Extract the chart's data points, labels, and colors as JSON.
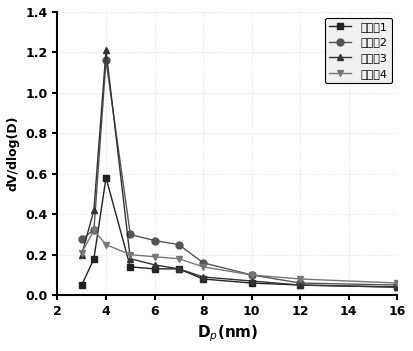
{
  "series": [
    {
      "label": "实施例1",
      "marker": "s",
      "color": "#222222",
      "x": [
        3.0,
        3.5,
        4.0,
        5.0,
        6.0,
        7.0,
        8.0,
        10.0,
        12.0,
        16.0
      ],
      "y": [
        0.05,
        0.18,
        0.58,
        0.14,
        0.13,
        0.13,
        0.08,
        0.06,
        0.05,
        0.04
      ]
    },
    {
      "label": "实施例2",
      "marker": "o",
      "color": "#555555",
      "x": [
        3.0,
        3.5,
        4.0,
        5.0,
        6.0,
        7.0,
        8.0,
        10.0,
        12.0,
        16.0
      ],
      "y": [
        0.28,
        0.32,
        1.16,
        0.3,
        0.27,
        0.25,
        0.16,
        0.1,
        0.06,
        0.05
      ]
    },
    {
      "label": "实施例3",
      "marker": "^",
      "color": "#333333",
      "x": [
        3.0,
        3.5,
        4.0,
        5.0,
        6.0,
        7.0,
        8.0,
        10.0,
        12.0,
        16.0
      ],
      "y": [
        0.2,
        0.42,
        1.21,
        0.18,
        0.15,
        0.13,
        0.09,
        0.07,
        0.05,
        0.04
      ]
    },
    {
      "label": "实施例4",
      "marker": "v",
      "color": "#777777",
      "x": [
        3.0,
        3.5,
        4.0,
        5.0,
        6.0,
        7.0,
        8.0,
        10.0,
        12.0,
        16.0
      ],
      "y": [
        0.21,
        0.32,
        0.25,
        0.2,
        0.19,
        0.18,
        0.14,
        0.1,
        0.08,
        0.06
      ]
    }
  ],
  "xlabel": "D$_p$(nm)",
  "ylabel": "dV/dlog(D)",
  "xlim": [
    2,
    16
  ],
  "ylim": [
    0.0,
    1.4
  ],
  "xticks": [
    2,
    4,
    6,
    8,
    10,
    12,
    14,
    16
  ],
  "yticks": [
    0.0,
    0.2,
    0.4,
    0.6,
    0.8,
    1.0,
    1.2,
    1.4
  ],
  "legend_loc": "upper right",
  "background_color": "#ffffff",
  "plot_bg_color": "#ffffff"
}
